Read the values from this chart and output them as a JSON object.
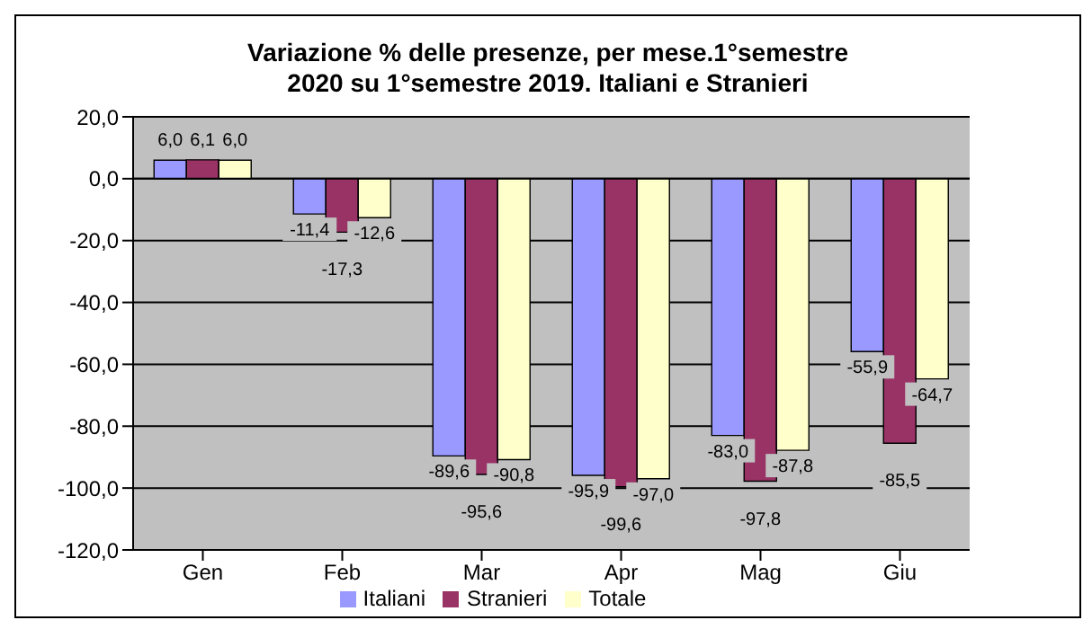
{
  "chart_data": {
    "type": "bar",
    "title": "Variazione % delle presenze, per mese.1°semestre 2020 su 1°semestre 2019. Italiani e Stranieri",
    "categories": [
      "Gen",
      "Feb",
      "Mar",
      "Apr",
      "Mag",
      "Giu"
    ],
    "series": [
      {
        "name": "Italiani",
        "color": "#9999ff",
        "values": [
          6.0,
          -11.4,
          -89.6,
          -95.9,
          -83.0,
          -55.9
        ],
        "value_labels": [
          "6,0",
          "-11,4",
          "-89,6",
          "-95,9",
          "-83,0",
          "-55,9"
        ]
      },
      {
        "name": "Stranieri",
        "color": "#993366",
        "values": [
          6.1,
          -17.3,
          -95.6,
          -99.6,
          -97.8,
          -85.5
        ],
        "value_labels": [
          "6,1",
          "-17,3",
          "-95,6",
          "-99,6",
          "-97,8",
          "-85,5"
        ]
      },
      {
        "name": "Totale",
        "color": "#ffffcc",
        "values": [
          6.0,
          -12.6,
          -90.8,
          -97.0,
          -87.8,
          -64.7
        ],
        "value_labels": [
          "6,0",
          "-12,6",
          "-90,8",
          "-97,0",
          "-87,8",
          "-64,7"
        ]
      }
    ],
    "ylim": [
      -120,
      20
    ],
    "yticks": [
      {
        "value": 20,
        "label": "20,0"
      },
      {
        "value": 0,
        "label": "0,0"
      },
      {
        "value": -20,
        "label": "-20,0"
      },
      {
        "value": -40,
        "label": "-40,0"
      },
      {
        "value": -60,
        "label": "-60,0"
      },
      {
        "value": -80,
        "label": "-80,0"
      },
      {
        "value": -100,
        "label": "-100,0"
      },
      {
        "value": -120,
        "label": "-120,0"
      }
    ],
    "grid": "y",
    "legend": "bottom"
  }
}
